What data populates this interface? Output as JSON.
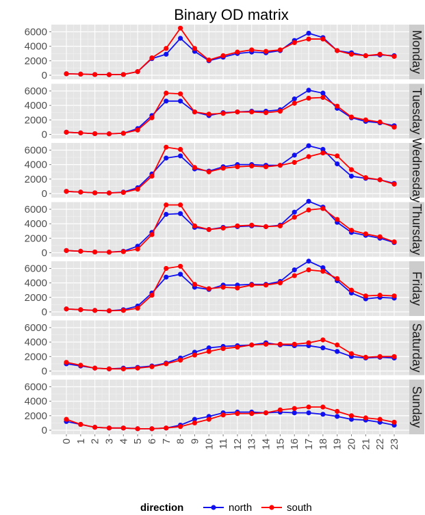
{
  "chart_data": {
    "type": "line",
    "title": "Binary OD matrix",
    "xlabel": "",
    "ylabel": "",
    "x": [
      0,
      1,
      2,
      3,
      4,
      5,
      6,
      7,
      8,
      9,
      10,
      11,
      12,
      13,
      14,
      15,
      16,
      17,
      18,
      19,
      20,
      21,
      22,
      23
    ],
    "x_tick_labels": [
      "0",
      "1",
      "2",
      "3",
      "4",
      "5",
      "6",
      "7",
      "8",
      "9",
      "10",
      "11",
      "12",
      "13",
      "14",
      "15",
      "16",
      "17",
      "18",
      "19",
      "20",
      "21",
      "22",
      "23"
    ],
    "ylim": [
      0,
      6800
    ],
    "y_ticks": [
      0,
      2000,
      4000,
      6000
    ],
    "y_tick_labels": [
      "0",
      "2000",
      "4000",
      "6000"
    ],
    "grid": true,
    "legend": {
      "title": "direction",
      "position": "bottom"
    },
    "series_colors": {
      "north": "#1010f0",
      "south": "#ff0000"
    },
    "panels": [
      {
        "label": "Monday",
        "series": [
          {
            "name": "north",
            "values": [
              200,
              150,
              100,
              80,
              100,
              500,
              2300,
              2900,
              5100,
              3300,
              2000,
              2500,
              3000,
              3200,
              3100,
              3400,
              4800,
              5800,
              5200,
              3400,
              3100,
              2700,
              2800,
              2700
            ]
          },
          {
            "name": "south",
            "values": [
              200,
              150,
              100,
              80,
              100,
              500,
              2400,
              3700,
              6500,
              3700,
              2100,
              2700,
              3200,
              3500,
              3300,
              3500,
              4500,
              5000,
              5000,
              3400,
              2900,
              2700,
              2900,
              2600
            ]
          }
        ]
      },
      {
        "label": "Tuesday",
        "series": [
          {
            "name": "north",
            "values": [
              300,
              200,
              100,
              80,
              150,
              800,
              2600,
              4600,
              4600,
              3100,
              2600,
              3000,
              3100,
              3200,
              3200,
              3400,
              4900,
              6100,
              5700,
              3600,
              2300,
              1800,
              1600,
              1200
            ]
          },
          {
            "name": "south",
            "values": [
              300,
              200,
              100,
              80,
              150,
              600,
              2300,
              5700,
              5600,
              3100,
              2800,
              2900,
              3100,
              3100,
              3000,
              3200,
              4300,
              5000,
              5100,
              3900,
              2400,
              2000,
              1700,
              1000
            ]
          }
        ]
      },
      {
        "label": "Wednesday",
        "series": [
          {
            "name": "north",
            "values": [
              300,
              200,
              100,
              80,
              200,
              800,
              2700,
              4900,
              5200,
              3400,
              3100,
              3700,
              4000,
              4000,
              3900,
              3900,
              5300,
              6600,
              6100,
              4100,
              2400,
              2100,
              1900,
              1400
            ]
          },
          {
            "name": "south",
            "values": [
              300,
              200,
              100,
              80,
              150,
              600,
              2400,
              6400,
              6100,
              3600,
              3000,
              3500,
              3700,
              3800,
              3700,
              3900,
              4300,
              5100,
              5600,
              5200,
              3300,
              2200,
              1900,
              1300
            ]
          }
        ]
      },
      {
        "label": "Thursday",
        "series": [
          {
            "name": "north",
            "values": [
              300,
              200,
              100,
              80,
              200,
              900,
              2800,
              5300,
              5400,
              3500,
              3200,
              3500,
              3600,
              3700,
              3600,
              3800,
              5600,
              7100,
              6300,
              4200,
              2800,
              2400,
              2000,
              1400
            ]
          },
          {
            "name": "south",
            "values": [
              300,
              200,
              100,
              80,
              150,
              500,
              2500,
              6600,
              6600,
              3700,
              3200,
              3400,
              3700,
              3800,
              3600,
              3700,
              4900,
              5900,
              6100,
              4600,
              3100,
              2600,
              2200,
              1500
            ]
          }
        ]
      },
      {
        "label": "Friday",
        "series": [
          {
            "name": "north",
            "values": [
              400,
              300,
              200,
              150,
              300,
              800,
              2600,
              4800,
              5200,
              3400,
              3100,
              3700,
              3700,
              3800,
              3800,
              4200,
              5800,
              7000,
              6100,
              4300,
              2600,
              1800,
              2000,
              1900
            ]
          },
          {
            "name": "south",
            "values": [
              400,
              300,
              200,
              150,
              200,
              500,
              2300,
              6000,
              6300,
              3800,
              3200,
              3400,
              3300,
              3700,
              3700,
              4000,
              5000,
              5800,
              5600,
              4600,
              3000,
              2200,
              2300,
              2200
            ]
          }
        ]
      },
      {
        "label": "Saturday",
        "series": [
          {
            "name": "north",
            "values": [
              1000,
              700,
              400,
              300,
              400,
              500,
              700,
              1100,
              1800,
              2600,
              3200,
              3400,
              3500,
              3600,
              3900,
              3600,
              3500,
              3500,
              3200,
              2700,
              2000,
              1800,
              1900,
              1800
            ]
          },
          {
            "name": "south",
            "values": [
              1200,
              800,
              400,
              300,
              300,
              400,
              600,
              1000,
              1500,
              2200,
              2700,
              3100,
              3300,
              3600,
              3700,
              3700,
              3700,
              3900,
              4300,
              3600,
              2400,
              1900,
              2000,
              2000
            ]
          }
        ]
      },
      {
        "label": "Sunday",
        "series": [
          {
            "name": "north",
            "values": [
              1200,
              800,
              400,
              300,
              300,
              200,
              200,
              300,
              700,
              1500,
              1900,
              2400,
              2500,
              2500,
              2400,
              2500,
              2400,
              2400,
              2200,
              1900,
              1500,
              1400,
              1100,
              700
            ]
          },
          {
            "name": "south",
            "values": [
              1500,
              800,
              400,
              300,
              300,
              200,
              200,
              300,
              500,
              1000,
              1500,
              2100,
              2300,
              2300,
              2400,
              2800,
              3000,
              3200,
              3200,
              2600,
              2000,
              1700,
              1500,
              1100
            ]
          }
        ]
      }
    ]
  }
}
